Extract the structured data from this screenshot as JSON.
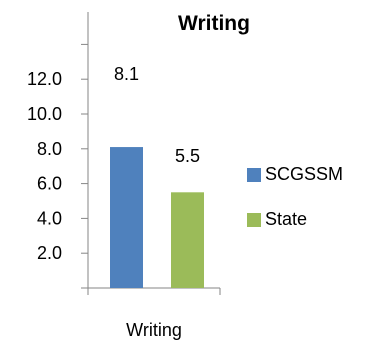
{
  "chart_data": {
    "type": "bar",
    "title": "Writing",
    "categories": [
      "Writing"
    ],
    "series": [
      {
        "name": "SCGSSM",
        "values": [
          8.1
        ],
        "color": "#4f81bd"
      },
      {
        "name": "State",
        "values": [
          5.5
        ],
        "color": "#9bbb59"
      }
    ],
    "data_labels": [
      "8.1",
      "5.5"
    ],
    "y_tick_labels": [
      "2.0",
      "4.0",
      "6.0",
      "8.0",
      "10.0",
      "12.0"
    ],
    "xlabel": "",
    "ylabel": "",
    "grid": false,
    "legend_position": "right"
  }
}
